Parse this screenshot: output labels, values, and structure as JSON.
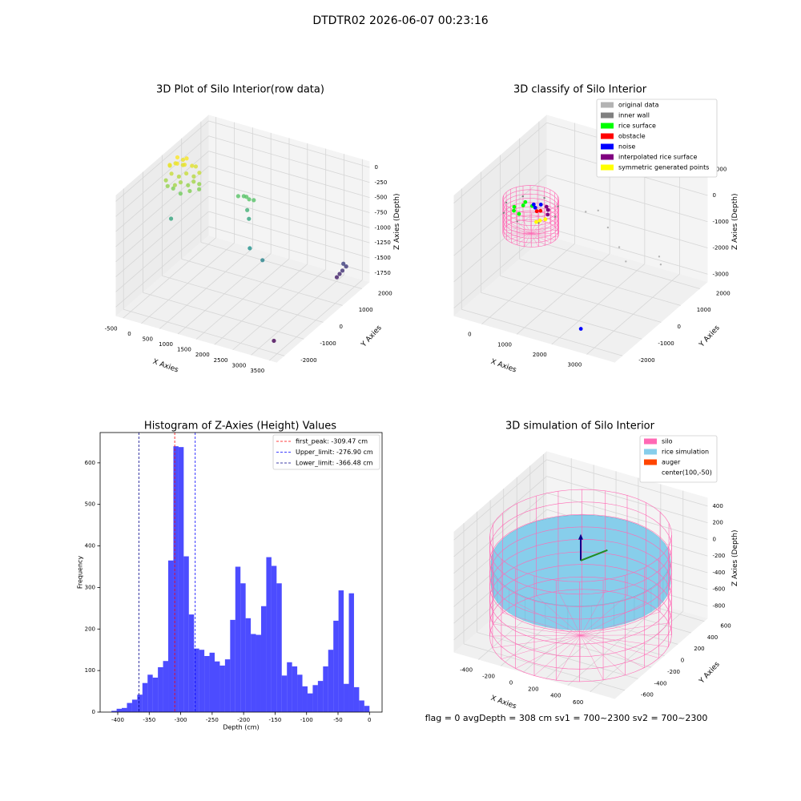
{
  "title": "DTDTR02 2026-06-07 00:23:16",
  "status": "flag = 0     avgDepth = 308 cm  sv1 = 700~2300  sv2 = 700~2300",
  "chart_data": [
    {
      "type": "scatter3d",
      "title": "3D Plot of Silo Interior(row data)",
      "xlabel": "X Axies",
      "ylabel": "Y Axies",
      "zlabel": "Z Axies (Depth)",
      "xlim": [
        -700,
        3700
      ],
      "ylim": [
        -2400,
        2400
      ],
      "zlim": [
        -1900,
        100
      ],
      "xticks": [
        -500,
        0,
        500,
        1000,
        1500,
        2000,
        2500,
        3000,
        3500
      ],
      "yticks": [
        -2000,
        -1000,
        0,
        1000,
        2000
      ],
      "zticks": [
        -1750,
        -1500,
        -1250,
        -1000,
        -750,
        -500,
        -250,
        0
      ],
      "colormap": "viridis",
      "x": [
        -650,
        -600,
        -550,
        -500,
        -450,
        -400,
        -350,
        -300,
        -250,
        -200,
        -150,
        -100,
        -50,
        0,
        50,
        100,
        -600,
        -500,
        -400,
        -300,
        -200,
        -550,
        -450,
        -350,
        0,
        -100,
        150,
        -300,
        900,
        1000,
        1100,
        1200,
        1300,
        1200,
        1300,
        1800,
        2200,
        3300,
        3350,
        3300,
        3250,
        3200,
        3200
      ],
      "y": [
        300,
        200,
        400,
        100,
        300,
        500,
        200,
        400,
        100,
        300,
        500,
        200,
        400,
        300,
        500,
        400,
        0,
        -100,
        0,
        -100,
        0,
        500,
        600,
        600,
        100,
        600,
        300,
        -300,
        900,
        1000,
        950,
        900,
        950,
        800,
        700,
        -200,
        -300,
        1800,
        1850,
        1750,
        1700,
        1650,
        -1600
      ],
      "z": [
        -150,
        -100,
        -120,
        -200,
        -80,
        -150,
        -250,
        -100,
        -300,
        -200,
        -120,
        -350,
        -250,
        -300,
        -200,
        -350,
        -300,
        -350,
        -400,
        -300,
        -450,
        -50,
        -100,
        -60,
        -400,
        -150,
        -400,
        -800,
        -550,
        -560,
        -540,
        -550,
        -560,
        -700,
        -800,
        -950,
        -1050,
        -1500,
        -1550,
        -1600,
        -1650,
        -1700,
        -1850
      ]
    },
    {
      "type": "classify3d",
      "title": "3D classify of Silo Interior",
      "xlabel": "X Axies",
      "ylabel": "Y Axies",
      "zlabel": "Z Axies (Depth)",
      "xlim": [
        -800,
        3800
      ],
      "ylim": [
        -2400,
        2400
      ],
      "zlim": [
        -3300,
        1300
      ],
      "xticks": [
        0,
        1000,
        2000,
        3000
      ],
      "yticks": [
        -2000,
        -1000,
        0,
        1000,
        2000
      ],
      "zticks": [
        -3000,
        -2000,
        -1000,
        0,
        1000
      ],
      "silo": {
        "center": [
          100,
          -50
        ],
        "radius": 700,
        "z": [
          -1300,
          0
        ],
        "color": "#ff69b4"
      },
      "legend": [
        {
          "label": "original data",
          "color": "#b3b3b3",
          "x": [
            1200,
            1500,
            2000,
            2600,
            3300,
            3400,
            2900
          ],
          "y": [
            800,
            900,
            500,
            0,
            800,
            700,
            -200
          ],
          "z": [
            -600,
            -500,
            -700,
            -900,
            -1500,
            -1700,
            -1200
          ]
        },
        {
          "label": "inner wall",
          "color": "#808080",
          "x": [
            800,
            600,
            100,
            -400,
            -600,
            -400,
            100,
            600
          ],
          "y": [
            -50,
            445,
            650,
            445,
            -50,
            -545,
            -750,
            -545
          ],
          "z": [
            -400,
            -400,
            -400,
            -400,
            -400,
            -400,
            -400,
            -400
          ]
        },
        {
          "label": "rice surface",
          "color": "#00ff00",
          "x": [
            -300,
            -200,
            -100,
            0,
            -400,
            -250
          ],
          "y": [
            -200,
            100,
            -300,
            200,
            0,
            300
          ],
          "z": [
            -500,
            -450,
            -480,
            -460,
            -520,
            -470
          ]
        },
        {
          "label": "obstacle",
          "color": "#ff0000",
          "x": [
            300,
            350
          ],
          "y": [
            -100,
            0
          ],
          "z": [
            -350,
            -380
          ]
        },
        {
          "label": "noise",
          "color": "#0000ff",
          "x": [
            100,
            200,
            250,
            2500
          ],
          "y": [
            100,
            0,
            200,
            -1800
          ],
          "z": [
            -300,
            -320,
            -310,
            -2900
          ]
        },
        {
          "label": "interpolated rice surface",
          "color": "#800080",
          "x": [
            300,
            400,
            500
          ],
          "y": [
            400,
            300,
            100
          ],
          "z": [
            -500,
            -520,
            -530
          ]
        },
        {
          "label": "symmetric generated points",
          "color": "#ffff00",
          "x": [
            500,
            600,
            450
          ],
          "y": [
            -300,
            -200,
            -400
          ],
          "z": [
            -500,
            -480,
            -510
          ]
        }
      ]
    },
    {
      "type": "histogram",
      "title": "Histogram of Z-Axies (Height) Values",
      "xlabel": "Depth (cm)",
      "ylabel": "Frequency",
      "xlim": [
        -428,
        20
      ],
      "ylim": [
        0,
        673
      ],
      "xticks": [
        -400,
        -350,
        -300,
        -250,
        -200,
        -150,
        -100,
        -50,
        0
      ],
      "yticks": [
        0,
        100,
        200,
        300,
        400,
        500,
        600
      ],
      "color": "#0000ff",
      "alpha": 0.7,
      "bins": [
        -410,
        -401.8,
        -393.6,
        -385.4,
        -377.2,
        -369,
        -360.8,
        -352.6,
        -344.4,
        -336.2,
        -328,
        -319.8,
        -311.6,
        -303.4,
        -295.2,
        -287,
        -278.8,
        -270.6,
        -262.4,
        -254.2,
        -246,
        -237.8,
        -229.6,
        -221.4,
        -213.2,
        -205,
        -196.8,
        -188.6,
        -180.4,
        -172.2,
        -164,
        -155.8,
        -147.6,
        -139.4,
        -131.2,
        -123,
        -114.8,
        -106.6,
        -98.4,
        -90.2,
        -82,
        -73.8,
        -65.6,
        -57.4,
        -49.2,
        -41,
        -32.8,
        -24.6,
        -16.4,
        -8.2,
        0
      ],
      "values": [
        3,
        8,
        10,
        22,
        30,
        42,
        70,
        90,
        83,
        108,
        123,
        365,
        640,
        638,
        375,
        235,
        153,
        150,
        135,
        143,
        122,
        112,
        127,
        222,
        350,
        310,
        226,
        188,
        186,
        255,
        373,
        352,
        310,
        88,
        120,
        110,
        90,
        62,
        45,
        65,
        75,
        110,
        150,
        220,
        293,
        68,
        286,
        60,
        28,
        15
      ],
      "vlines": [
        {
          "value": -309.47,
          "label": "first_peak: -309.47 cm",
          "color": "#ff0000"
        },
        {
          "value": -276.9,
          "label": "Upper_limit: -276.90 cm",
          "color": "#0000ff"
        },
        {
          "value": -366.48,
          "label": "Lower_limit: -366.48 cm",
          "color": "#00008b"
        }
      ]
    },
    {
      "type": "silo3d",
      "title": "3D simulation of Silo Interior",
      "xlabel": "X Axies",
      "ylabel": "Y Axies",
      "zlabel": "Z Axies (Depth)",
      "xlim": [
        -620,
        820
      ],
      "ylim": [
        -750,
        650
      ],
      "zlim": [
        -950,
        500
      ],
      "xticks": [
        -400,
        -200,
        0,
        200,
        400,
        600
      ],
      "yticks": [
        -600,
        -400,
        -200,
        0,
        200,
        400,
        600
      ],
      "zticks": [
        -800,
        -600,
        -400,
        -200,
        0,
        200,
        400
      ],
      "silo": {
        "center": [
          100,
          -50
        ],
        "radius": 700,
        "z": [
          -950,
          250
        ],
        "color": "#ff69b4"
      },
      "rice": {
        "center": [
          100,
          -50
        ],
        "radius": 690,
        "z": [
          -340,
          -50
        ],
        "color": "#87ceeb"
      },
      "legend": [
        {
          "label": "silo",
          "color": "#ff69b4"
        },
        {
          "label": "rice simulation",
          "color": "#87ceeb"
        },
        {
          "label": "auger",
          "color": "#ff4500"
        },
        {
          "label": "center(100,-50)"
        }
      ]
    }
  ]
}
